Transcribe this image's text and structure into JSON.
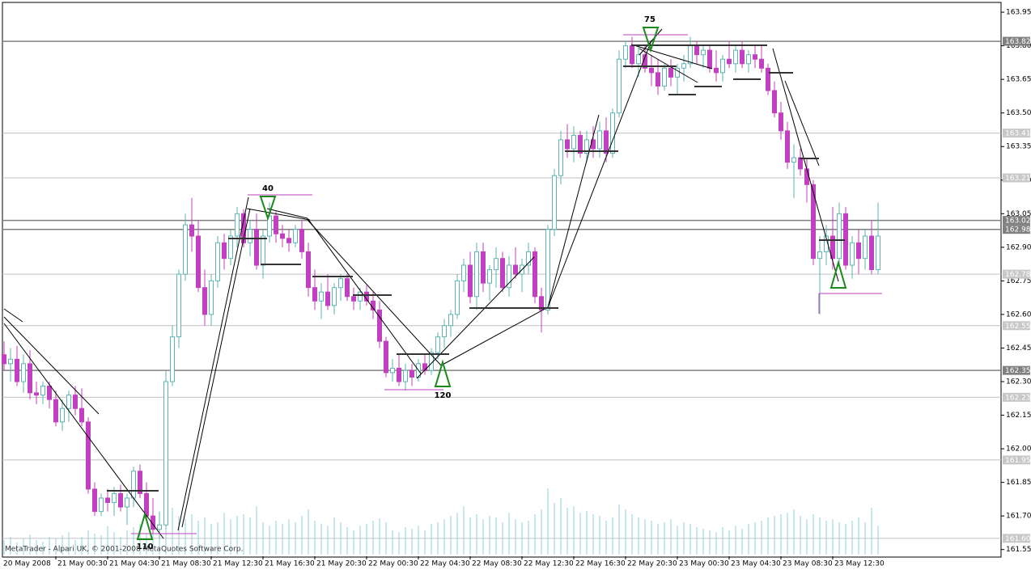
{
  "chart_data": {
    "type": "candlestick",
    "up_color": "#5fb3b3",
    "down_color": "#c040c0",
    "volume_color": "#8fd3d3",
    "ylim": [
      161.52,
      163.99
    ],
    "yticks": [
      163.95,
      {
        "value": 163.8,
        "label": "163.80"
      },
      163.65,
      {
        "value": 163.5,
        "label": "163.50"
      },
      163.35,
      {
        "value": 163.2,
        "label": "163.20"
      },
      163.05,
      {
        "value": 162.9,
        "label": "162.90"
      },
      162.75,
      {
        "value": 162.6,
        "label": "162.60"
      },
      162.45,
      {
        "value": 162.3,
        "label": "162.30"
      },
      162.15,
      {
        "value": 162,
        "label": "162.00"
      },
      161.85,
      {
        "value": 161.7,
        "label": "161.70"
      },
      161.55
    ],
    "levels": [
      {
        "value": 163.82,
        "style": "dark"
      },
      {
        "value": 163.41,
        "style": "light"
      },
      {
        "value": 163.21,
        "style": "light"
      },
      {
        "value": 163.02,
        "style": "dark"
      },
      {
        "value": 162.98,
        "style": "dark"
      },
      {
        "value": 162.78,
        "style": "light"
      },
      {
        "value": 162.55,
        "style": "light"
      },
      {
        "value": 162.35,
        "style": "dark"
      },
      {
        "value": 162.23,
        "style": "light"
      },
      {
        "value": 161.95,
        "style": "light"
      },
      {
        "value": 161.6,
        "label": "161.60",
        "style": "light"
      }
    ],
    "time_labels": [
      "20 May 2008",
      "21 May 00:30",
      "21 May 04:30",
      "21 May 08:30",
      "21 May 12:30",
      "21 May 16:30",
      "21 May 20:30",
      "22 May 00:30",
      "22 May 04:30",
      "22 May 08:30",
      "22 May 12:30",
      "22 May 16:30",
      "22 May 20:30",
      "23 May 00:30",
      "23 May 04:30",
      "23 May 08:30",
      "23 May 12:30"
    ],
    "annotations": [
      "40",
      "75",
      "120",
      "110"
    ],
    "footer": "MetaTrader - Alpari UK, © 2001-2008 MetaQuotes Software Corp.",
    "candles": [
      [
        162.42,
        162.48,
        162.35,
        162.38
      ],
      [
        162.38,
        162.45,
        162.3,
        162.4
      ],
      [
        162.4,
        162.46,
        162.28,
        162.3
      ],
      [
        162.3,
        162.42,
        162.25,
        162.38
      ],
      [
        162.38,
        162.44,
        162.22,
        162.25
      ],
      [
        162.25,
        162.3,
        162.2,
        162.24
      ],
      [
        162.24,
        162.3,
        162.2,
        162.28
      ],
      [
        162.28,
        162.3,
        162.18,
        162.22
      ],
      [
        162.22,
        162.26,
        162.1,
        162.12
      ],
      [
        162.12,
        162.22,
        162.08,
        162.18
      ],
      [
        162.18,
        162.26,
        162.12,
        162.24
      ],
      [
        162.24,
        162.28,
        162.15,
        162.18
      ],
      [
        162.18,
        162.27,
        162.1,
        162.12
      ],
      [
        162.12,
        162.14,
        161.8,
        161.82
      ],
      [
        161.82,
        161.85,
        161.7,
        161.72
      ],
      [
        161.72,
        161.8,
        161.7,
        161.78
      ],
      [
        161.78,
        161.82,
        161.72,
        161.76
      ],
      [
        161.76,
        161.83,
        161.7,
        161.8
      ],
      [
        161.8,
        161.84,
        161.72,
        161.74
      ],
      [
        161.74,
        161.8,
        161.66,
        161.78
      ],
      [
        161.78,
        161.92,
        161.74,
        161.9
      ],
      [
        161.9,
        161.93,
        161.78,
        161.8
      ],
      [
        161.8,
        161.85,
        161.68,
        161.7
      ],
      [
        161.7,
        161.78,
        161.62,
        161.64
      ],
      [
        161.64,
        161.72,
        161.6,
        161.66
      ],
      [
        161.66,
        162.35,
        161.64,
        162.3
      ],
      [
        162.3,
        162.55,
        162.28,
        162.5
      ],
      [
        162.5,
        162.8,
        162.45,
        162.78
      ],
      [
        162.78,
        163.05,
        162.75,
        163.0
      ],
      [
        163.0,
        163.12,
        162.88,
        162.95
      ],
      [
        162.95,
        163.02,
        162.7,
        162.72
      ],
      [
        162.72,
        162.8,
        162.55,
        162.6
      ],
      [
        162.6,
        162.78,
        162.55,
        162.75
      ],
      [
        162.75,
        162.95,
        162.72,
        162.92
      ],
      [
        162.92,
        162.96,
        162.8,
        162.85
      ],
      [
        162.85,
        162.98,
        162.82,
        162.95
      ],
      [
        162.95,
        163.08,
        162.9,
        163.05
      ],
      [
        163.05,
        163.07,
        162.9,
        162.92
      ],
      [
        162.92,
        163.02,
        162.86,
        162.98
      ],
      [
        162.98,
        163.05,
        162.8,
        162.82
      ],
      [
        162.82,
        162.98,
        162.76,
        162.95
      ],
      [
        162.95,
        163.1,
        162.92,
        163.04
      ],
      [
        163.04,
        163.06,
        162.92,
        162.96
      ],
      [
        162.96,
        163.0,
        162.9,
        162.94
      ],
      [
        162.94,
        162.98,
        162.88,
        162.92
      ],
      [
        162.92,
        163.0,
        162.9,
        162.98
      ],
      [
        162.98,
        163.02,
        162.85,
        162.88
      ],
      [
        162.88,
        162.92,
        162.68,
        162.72
      ],
      [
        162.72,
        162.8,
        162.62,
        162.66
      ],
      [
        162.66,
        162.74,
        162.58,
        162.7
      ],
      [
        162.7,
        162.78,
        162.62,
        162.64
      ],
      [
        162.64,
        162.74,
        162.6,
        162.72
      ],
      [
        162.72,
        162.78,
        162.66,
        162.76
      ],
      [
        162.76,
        162.78,
        162.66,
        162.68
      ],
      [
        162.68,
        162.72,
        162.62,
        162.66
      ],
      [
        162.66,
        162.72,
        162.62,
        162.7
      ],
      [
        162.7,
        162.73,
        162.64,
        162.66
      ],
      [
        162.66,
        162.7,
        162.58,
        162.62
      ],
      [
        162.62,
        162.66,
        162.45,
        162.48
      ],
      [
        162.48,
        162.5,
        162.32,
        162.34
      ],
      [
        162.34,
        162.4,
        162.3,
        162.36
      ],
      [
        162.36,
        162.42,
        162.28,
        162.3
      ],
      [
        162.3,
        162.38,
        162.26,
        162.35
      ],
      [
        162.35,
        162.38,
        162.28,
        162.32
      ],
      [
        162.32,
        162.4,
        162.3,
        162.38
      ],
      [
        162.38,
        162.42,
        162.33,
        162.35
      ],
      [
        162.35,
        162.45,
        162.33,
        162.43
      ],
      [
        162.43,
        162.52,
        162.4,
        162.5
      ],
      [
        162.5,
        162.58,
        162.45,
        162.55
      ],
      [
        162.55,
        162.62,
        162.5,
        162.6
      ],
      [
        162.6,
        162.78,
        162.58,
        162.75
      ],
      [
        162.75,
        162.85,
        162.7,
        162.82
      ],
      [
        162.82,
        162.88,
        162.65,
        162.68
      ],
      [
        162.68,
        162.92,
        162.62,
        162.88
      ],
      [
        162.88,
        162.92,
        162.7,
        162.74
      ],
      [
        162.74,
        162.82,
        162.66,
        162.8
      ],
      [
        162.8,
        162.9,
        162.72,
        162.85
      ],
      [
        162.85,
        162.88,
        162.7,
        162.72
      ],
      [
        162.72,
        162.86,
        162.68,
        162.82
      ],
      [
        162.82,
        162.9,
        162.76,
        162.78
      ],
      [
        162.78,
        162.85,
        162.7,
        162.82
      ],
      [
        162.82,
        162.92,
        162.78,
        162.88
      ],
      [
        162.88,
        162.9,
        162.65,
        162.68
      ],
      [
        162.68,
        162.72,
        162.52,
        162.62
      ],
      [
        162.62,
        163.0,
        162.6,
        162.98
      ],
      [
        162.98,
        163.25,
        162.95,
        163.22
      ],
      [
        163.22,
        163.42,
        163.18,
        163.38
      ],
      [
        163.38,
        163.45,
        163.3,
        163.34
      ],
      [
        163.34,
        163.44,
        163.28,
        163.4
      ],
      [
        163.4,
        163.42,
        163.3,
        163.32
      ],
      [
        163.32,
        163.42,
        163.28,
        163.38
      ],
      [
        163.38,
        163.44,
        163.3,
        163.34
      ],
      [
        163.34,
        163.46,
        163.3,
        163.42
      ],
      [
        163.42,
        163.48,
        163.28,
        163.32
      ],
      [
        163.32,
        163.52,
        163.3,
        163.5
      ],
      [
        163.5,
        163.78,
        163.48,
        163.74
      ],
      [
        163.74,
        163.82,
        163.7,
        163.8
      ],
      [
        163.8,
        163.84,
        163.7,
        163.72
      ],
      [
        163.72,
        163.8,
        163.66,
        163.76
      ],
      [
        163.76,
        163.8,
        163.68,
        163.7
      ],
      [
        163.7,
        163.76,
        163.62,
        163.68
      ],
      [
        163.68,
        163.74,
        163.58,
        163.62
      ],
      [
        163.62,
        163.72,
        163.6,
        163.7
      ],
      [
        163.7,
        163.74,
        163.62,
        163.66
      ],
      [
        163.66,
        163.72,
        163.58,
        163.7
      ],
      [
        163.7,
        163.76,
        163.64,
        163.72
      ],
      [
        163.72,
        163.84,
        163.7,
        163.8
      ],
      [
        163.8,
        163.82,
        163.72,
        163.76
      ],
      [
        163.76,
        163.8,
        163.7,
        163.78
      ],
      [
        163.78,
        163.8,
        163.68,
        163.7
      ],
      [
        163.7,
        163.78,
        163.64,
        163.68
      ],
      [
        163.68,
        163.76,
        163.64,
        163.74
      ],
      [
        163.74,
        163.82,
        163.7,
        163.72
      ],
      [
        163.72,
        163.8,
        163.68,
        163.78
      ],
      [
        163.78,
        163.82,
        163.7,
        163.72
      ],
      [
        163.72,
        163.78,
        163.68,
        163.76
      ],
      [
        163.76,
        163.8,
        163.7,
        163.74
      ],
      [
        163.74,
        163.8,
        163.68,
        163.7
      ],
      [
        163.7,
        163.72,
        163.58,
        163.6
      ],
      [
        163.6,
        163.64,
        163.48,
        163.5
      ],
      [
        163.5,
        163.55,
        163.38,
        163.42
      ],
      [
        163.42,
        163.46,
        163.25,
        163.28
      ],
      [
        163.28,
        163.36,
        163.12,
        163.3
      ],
      [
        163.3,
        163.34,
        163.22,
        163.25
      ],
      [
        163.25,
        163.3,
        163.1,
        163.18
      ],
      [
        163.18,
        163.2,
        162.82,
        162.85
      ],
      [
        162.85,
        162.95,
        162.6,
        162.88
      ],
      [
        162.88,
        163.0,
        162.82,
        162.95
      ],
      [
        162.95,
        163.08,
        162.8,
        162.85
      ],
      [
        162.85,
        163.1,
        162.82,
        163.05
      ],
      [
        163.05,
        163.08,
        162.8,
        162.82
      ],
      [
        162.82,
        162.95,
        162.76,
        162.92
      ],
      [
        162.92,
        162.98,
        162.78,
        162.85
      ],
      [
        162.85,
        162.98,
        162.8,
        162.95
      ],
      [
        162.95,
        163.02,
        162.78,
        162.8
      ],
      [
        162.8,
        163.1,
        162.78,
        162.95
      ]
    ],
    "volumes": [
      18,
      22,
      15,
      20,
      25,
      18,
      16,
      22,
      20,
      24,
      28,
      18,
      22,
      30,
      26,
      24,
      35,
      28,
      22,
      30,
      34,
      38,
      26,
      30,
      40,
      56,
      58,
      48,
      44,
      50,
      42,
      46,
      38,
      40,
      52,
      44,
      48,
      50,
      46,
      60,
      40,
      36,
      42,
      38,
      44,
      40,
      48,
      56,
      42,
      38,
      36,
      46,
      40,
      34,
      30,
      36,
      38,
      42,
      45,
      40,
      30,
      28,
      34,
      32,
      36,
      30,
      38,
      40,
      44,
      48,
      52,
      60,
      46,
      50,
      44,
      48,
      46,
      40,
      52,
      44,
      40,
      42,
      50,
      56,
      82,
      64,
      70,
      58,
      60,
      52,
      54,
      50,
      48,
      42,
      46,
      62,
      56,
      50,
      46,
      44,
      42,
      38,
      40,
      44,
      36,
      40,
      38,
      34,
      32,
      30,
      28,
      34,
      30,
      36,
      32,
      38,
      40,
      42,
      46,
      48,
      50,
      52,
      56,
      48,
      44,
      50,
      46,
      42,
      44,
      40,
      38,
      42,
      46,
      40,
      58,
      36
    ]
  }
}
